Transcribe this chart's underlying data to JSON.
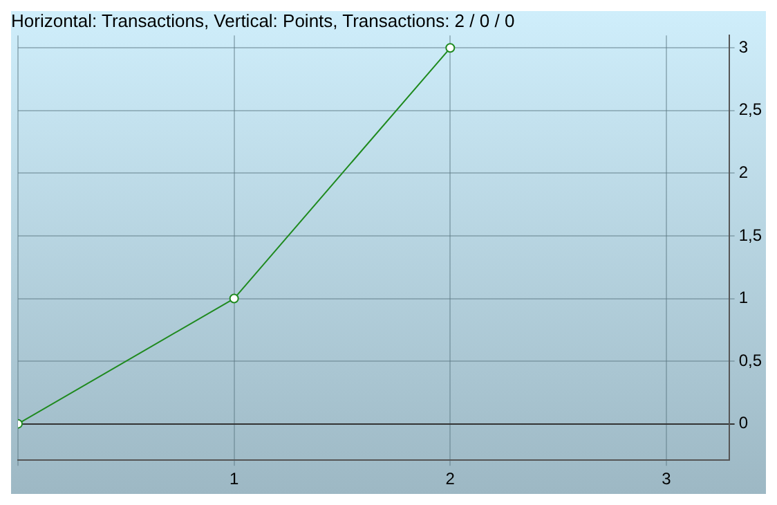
{
  "chart_data": {
    "type": "line",
    "title": "Horizontal: Transactions, Vertical: Points, Transactions: 2 / 0 / 0",
    "x": [
      0,
      1,
      2
    ],
    "series": [
      {
        "color": "#1f8a1f",
        "values": [
          0,
          1,
          3
        ]
      }
    ],
    "xlim": [
      0,
      3.29
    ],
    "xticks": [
      {
        "value": 0,
        "label": null
      },
      1,
      2,
      3
    ],
    "ylim": [
      -0.29,
      3.1
    ],
    "yticks": [
      0,
      {
        "value": 0.5,
        "label": "0,5"
      },
      1,
      {
        "value": 1.5,
        "label": "1,5"
      },
      2,
      {
        "value": 2.5,
        "label": "2,5"
      },
      3
    ],
    "grid": true,
    "marker": "circle",
    "legend": false
  }
}
